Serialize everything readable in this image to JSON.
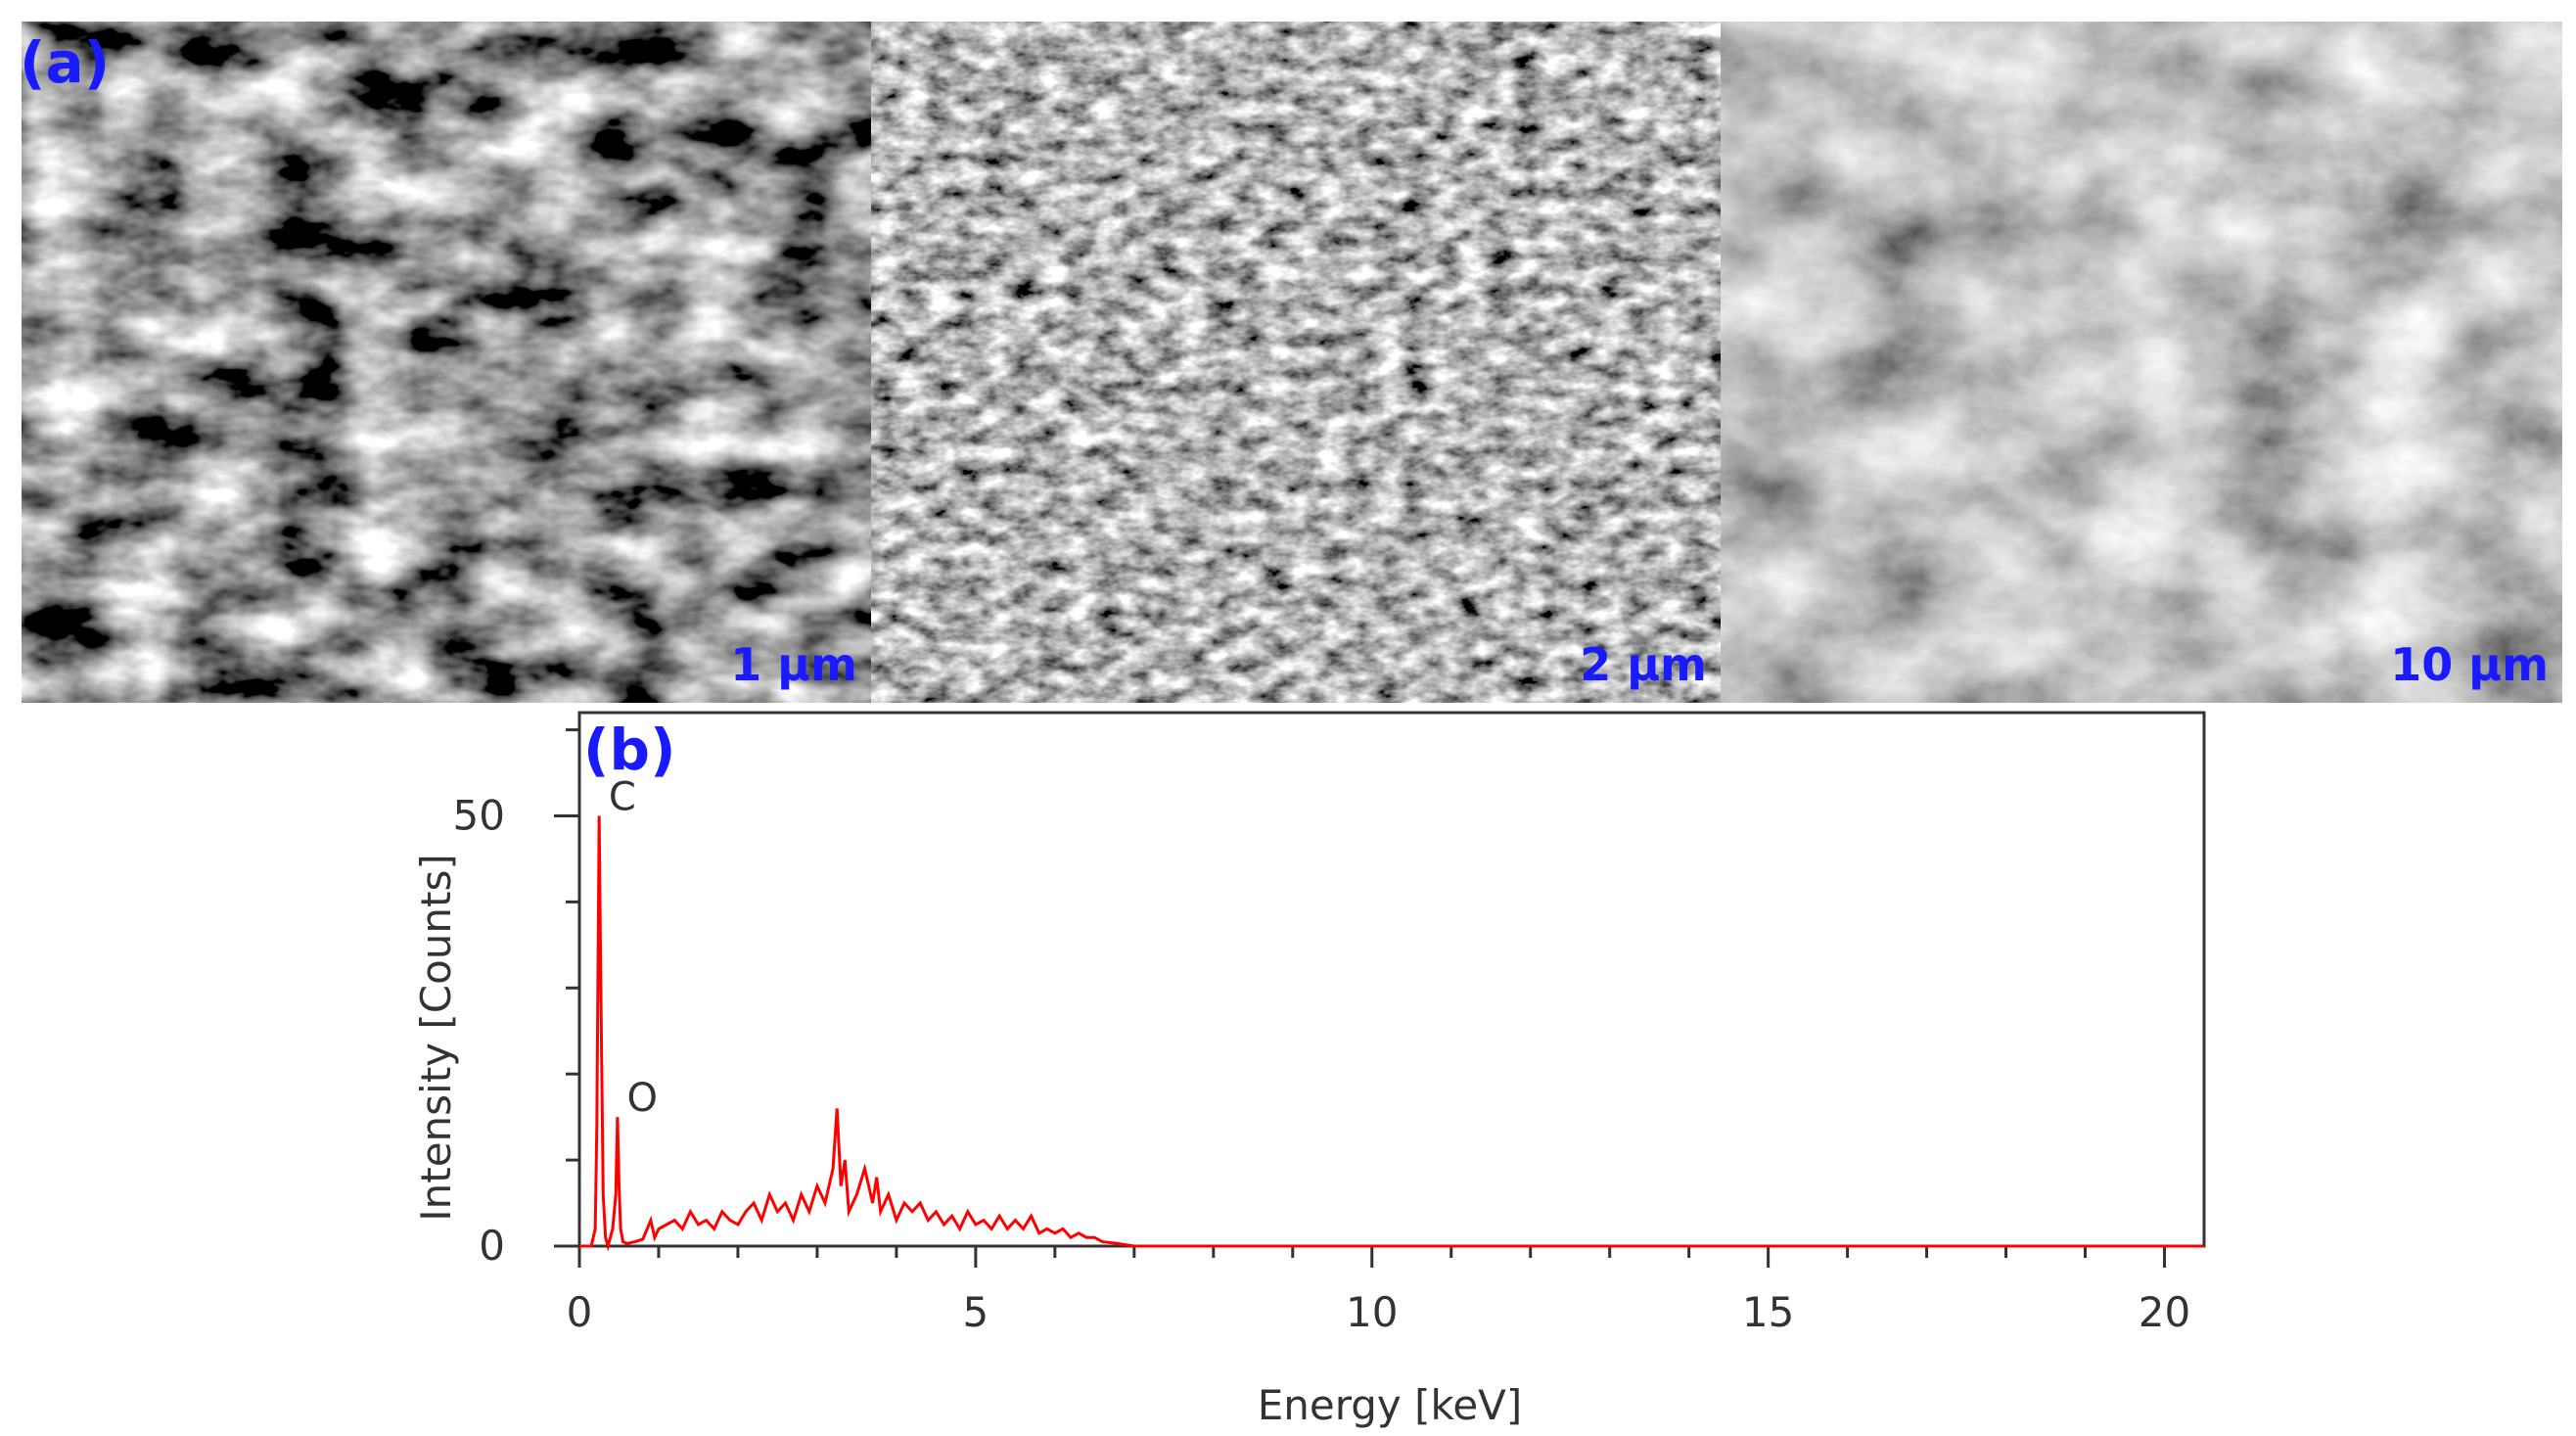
{
  "figure": {
    "panel_a_tag": "(a)",
    "panel_b_tag": "(b)",
    "sem_images": [
      {
        "scale_bar": "1 µm",
        "tone": "high-contrast"
      },
      {
        "scale_bar": "2 µm",
        "tone": "fibrous"
      },
      {
        "scale_bar": "10 µm",
        "tone": "dark-grey"
      }
    ]
  },
  "chart_data": {
    "type": "line",
    "title": "",
    "xlabel": "Energy [keV]",
    "ylabel": "Intensity [Counts]",
    "xlim": [
      0,
      20.5
    ],
    "ylim": [
      0,
      62
    ],
    "xticks": [
      0,
      5,
      10,
      15,
      20
    ],
    "yticks": [
      0,
      50
    ],
    "grid": false,
    "line_color": "#ff0000",
    "series": [
      {
        "x": [
          0,
          0.15,
          0.2,
          0.22,
          0.25,
          0.27,
          0.3,
          0.33,
          0.36,
          0.42,
          0.46,
          0.48,
          0.5,
          0.52,
          0.55,
          0.6,
          0.7,
          0.8,
          0.9,
          0.95,
          1.0,
          1.1,
          1.2,
          1.3,
          1.4,
          1.5,
          1.6,
          1.7,
          1.8,
          1.9,
          2.0,
          2.1,
          2.2,
          2.3,
          2.4,
          2.5,
          2.6,
          2.7,
          2.8,
          2.9,
          3.0,
          3.1,
          3.2,
          3.25,
          3.3,
          3.35,
          3.4,
          3.5,
          3.6,
          3.7,
          3.75,
          3.8,
          3.9,
          4.0,
          4.1,
          4.2,
          4.3,
          4.4,
          4.5,
          4.6,
          4.7,
          4.8,
          4.9,
          5.0,
          5.1,
          5.2,
          5.3,
          5.4,
          5.5,
          5.6,
          5.7,
          5.8,
          5.9,
          6.0,
          6.1,
          6.2,
          6.3,
          6.4,
          6.5,
          6.6,
          6.8,
          7.0,
          8.0,
          10.0,
          12.0,
          15.0,
          18.0,
          20.5
        ],
        "y": [
          0,
          0,
          2,
          14,
          50,
          30,
          6,
          1,
          0,
          2,
          6,
          15,
          7,
          2,
          0.5,
          0.3,
          0.5,
          0.8,
          3,
          1,
          2,
          2.5,
          3,
          2,
          4,
          2.5,
          3,
          2,
          4,
          3,
          2.5,
          4,
          5,
          3,
          6,
          4,
          5,
          3,
          6,
          4,
          7,
          5,
          9,
          16,
          7,
          10,
          4,
          6,
          9,
          5,
          8,
          4,
          6,
          3,
          5,
          4,
          5,
          3,
          4,
          2.5,
          3.5,
          2,
          4,
          2.5,
          3,
          2,
          3.5,
          2,
          3,
          2,
          3.5,
          1.5,
          2,
          1.5,
          2,
          1,
          1.5,
          1,
          1,
          0.5,
          0.3,
          0,
          0,
          0,
          0,
          0,
          0,
          0
        ]
      }
    ],
    "peak_labels": [
      {
        "text": "C",
        "x": 0.27,
        "y": 50
      },
      {
        "text": "O",
        "x": 0.5,
        "y": 15
      }
    ]
  }
}
